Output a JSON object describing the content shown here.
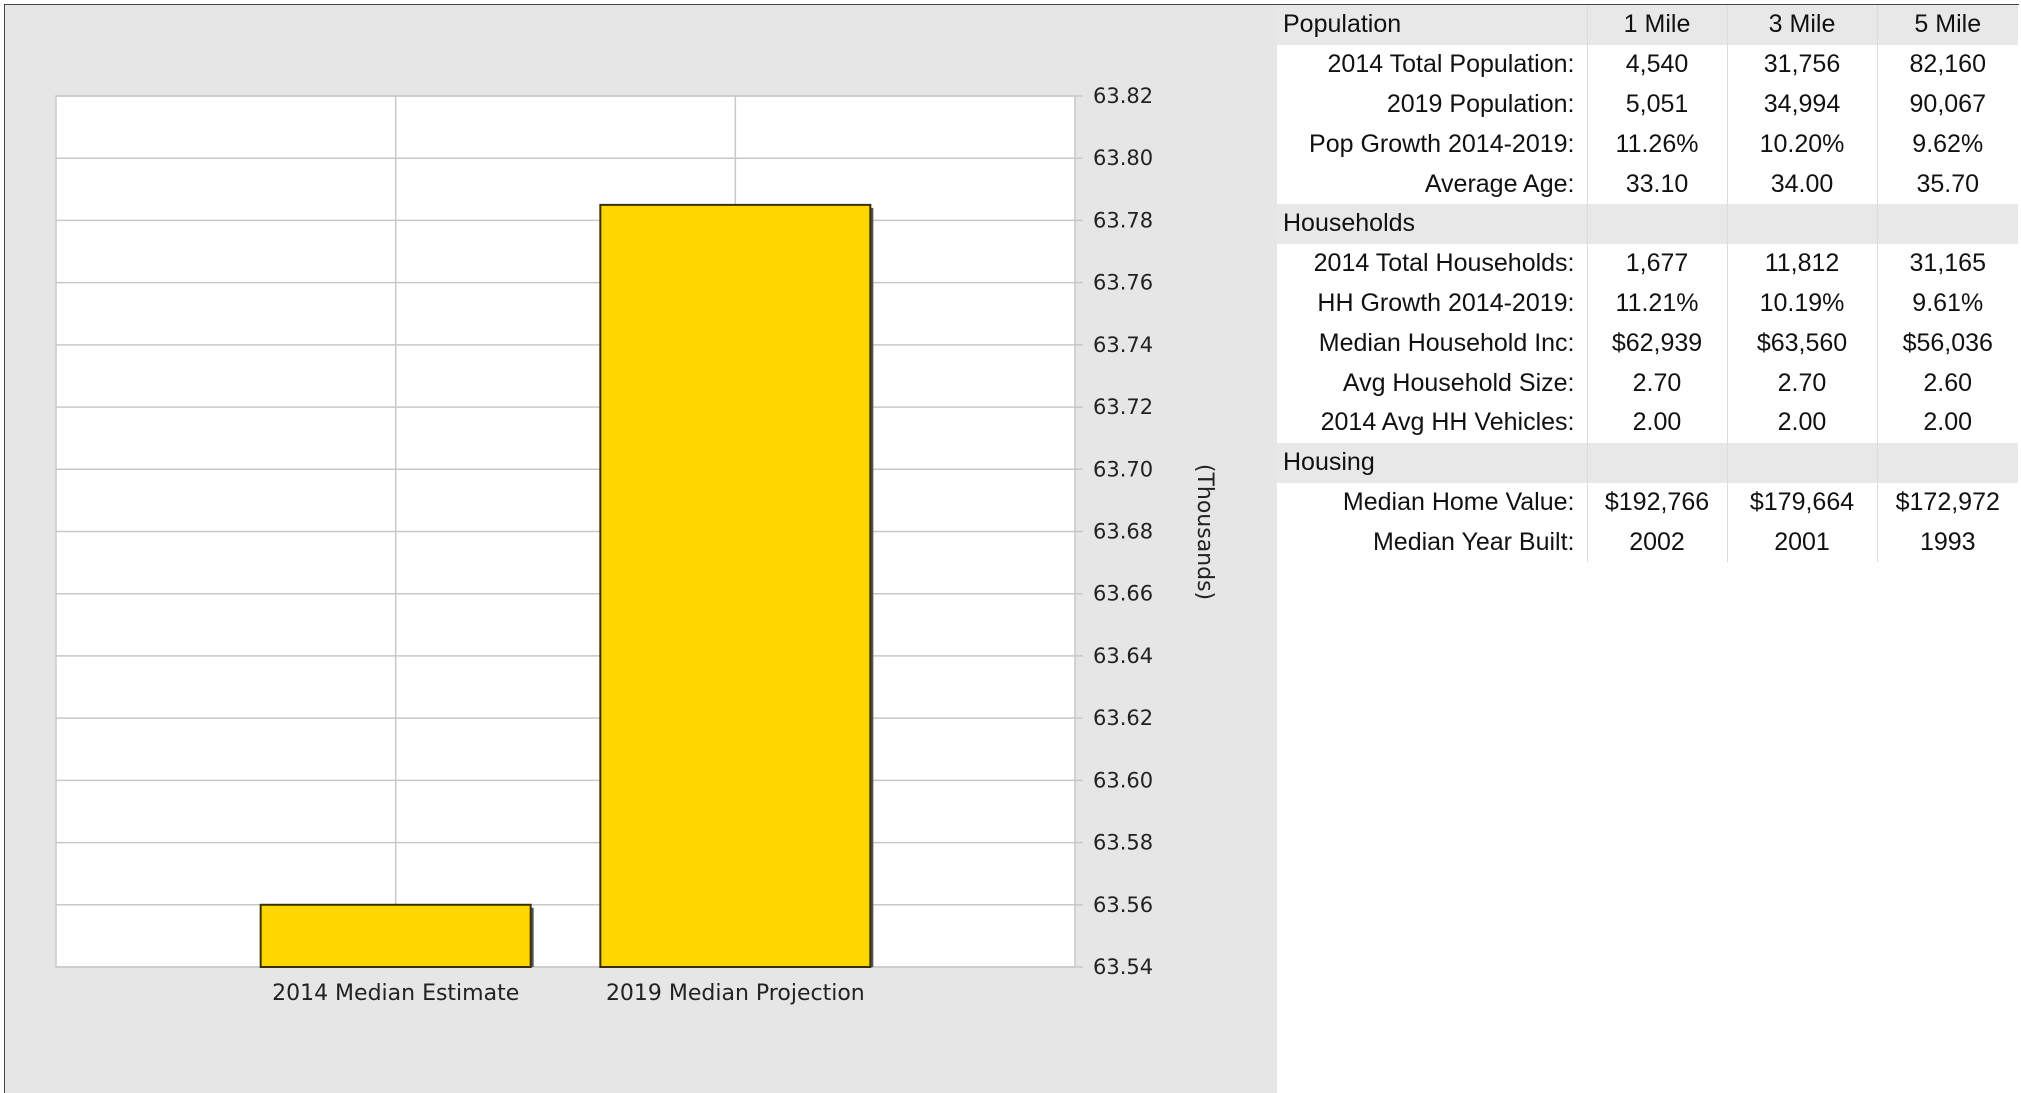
{
  "chart_data": {
    "type": "bar",
    "categories": [
      "2014 Median Estimate",
      "2019 Median Projection"
    ],
    "values": [
      63.56,
      63.785
    ],
    "ylabel": "(Thousands)",
    "ylim": [
      63.54,
      63.82
    ],
    "yticks": [
      "63.82",
      "63.80",
      "63.78",
      "63.76",
      "63.74",
      "63.72",
      "63.70",
      "63.68",
      "63.66",
      "63.64",
      "63.62",
      "63.60",
      "63.58",
      "63.56",
      "63.54"
    ],
    "y_axis_side": "right",
    "grid": true,
    "bar_color": "#ffd700"
  },
  "table": {
    "header": {
      "title": "Population",
      "cols": [
        "1 Mile",
        "3 Mile",
        "5 Mile"
      ]
    },
    "sections": [
      {
        "title": null,
        "rows": [
          {
            "label": "2014 Total Population:",
            "values": [
              "4,540",
              "31,756",
              "82,160"
            ]
          },
          {
            "label": "2019 Population:",
            "values": [
              "5,051",
              "34,994",
              "90,067"
            ]
          },
          {
            "label": "Pop Growth 2014-2019:",
            "values": [
              "11.26%",
              "10.20%",
              "9.62%"
            ]
          },
          {
            "label": "Average Age:",
            "values": [
              "33.10",
              "34.00",
              "35.70"
            ]
          }
        ]
      },
      {
        "title": "Households",
        "rows": [
          {
            "label": "2014 Total Households:",
            "values": [
              "1,677",
              "11,812",
              "31,165"
            ]
          },
          {
            "label": "HH Growth 2014-2019:",
            "values": [
              "11.21%",
              "10.19%",
              "9.61%"
            ]
          },
          {
            "label": "Median Household Inc:",
            "values": [
              "$62,939",
              "$63,560",
              "$56,036"
            ]
          },
          {
            "label": "Avg Household Size:",
            "values": [
              "2.70",
              "2.70",
              "2.60"
            ]
          },
          {
            "label": "2014 Avg HH Vehicles:",
            "values": [
              "2.00",
              "2.00",
              "2.00"
            ]
          }
        ]
      },
      {
        "title": "Housing",
        "rows": [
          {
            "label": "Median Home Value:",
            "values": [
              "$192,766",
              "$179,664",
              "$172,972"
            ]
          },
          {
            "label": "Median Year Built:",
            "values": [
              "2002",
              "2001",
              "1993"
            ]
          }
        ]
      }
    ]
  }
}
